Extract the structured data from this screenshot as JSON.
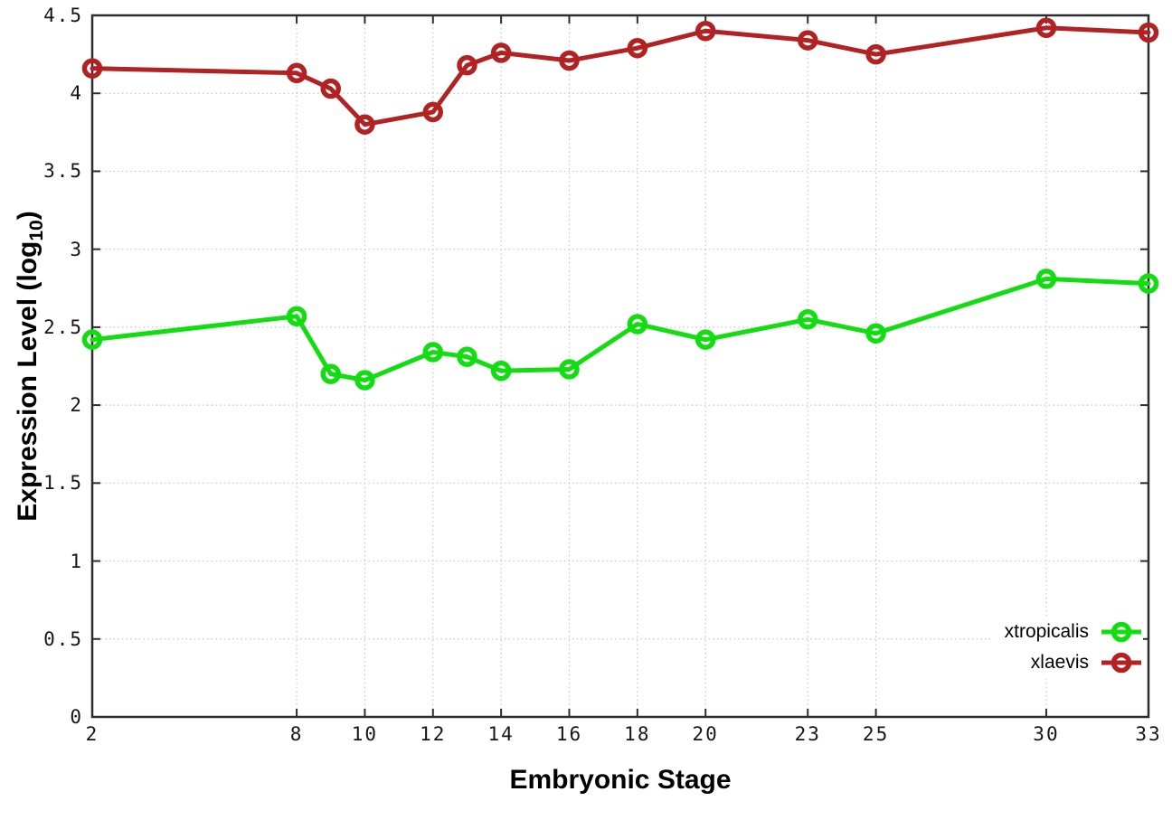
{
  "chart_data": {
    "type": "line",
    "title": "",
    "xlabel": "Embryonic Stage",
    "ylabel_main": "Expression Level (log",
    "ylabel_sub": "10",
    "ylabel_close": ")",
    "x": [
      2,
      8,
      9,
      10,
      12,
      13,
      14,
      16,
      18,
      20,
      23,
      25,
      30,
      33
    ],
    "series": [
      {
        "name": "xtropicalis",
        "color": "#11dd11",
        "values": [
          2.42,
          2.57,
          2.2,
          2.16,
          2.34,
          2.31,
          2.22,
          2.23,
          2.52,
          2.42,
          2.55,
          2.46,
          2.81,
          2.78
        ]
      },
      {
        "name": "xlaevis",
        "color": "#b22222",
        "values": [
          4.16,
          4.13,
          4.03,
          3.8,
          3.88,
          4.18,
          4.26,
          4.21,
          4.29,
          4.4,
          4.34,
          4.25,
          4.42,
          4.39
        ]
      }
    ],
    "xticks": [
      "2",
      "8",
      "10",
      "12",
      "14",
      "16",
      "18",
      "20",
      "23",
      "25",
      "30",
      "33"
    ],
    "yticks": [
      "0",
      "0.5",
      "1",
      "1.5",
      "2",
      "2.5",
      "3",
      "3.5",
      "4",
      "4.5"
    ],
    "xlim": [
      2,
      33
    ],
    "ylim": [
      0,
      4.5
    ],
    "grid": true,
    "legend_position": "inside bottom-right",
    "marker": "open-circle",
    "axis_color": "#2d2d2d",
    "grid_color": "#c6c6c6"
  }
}
